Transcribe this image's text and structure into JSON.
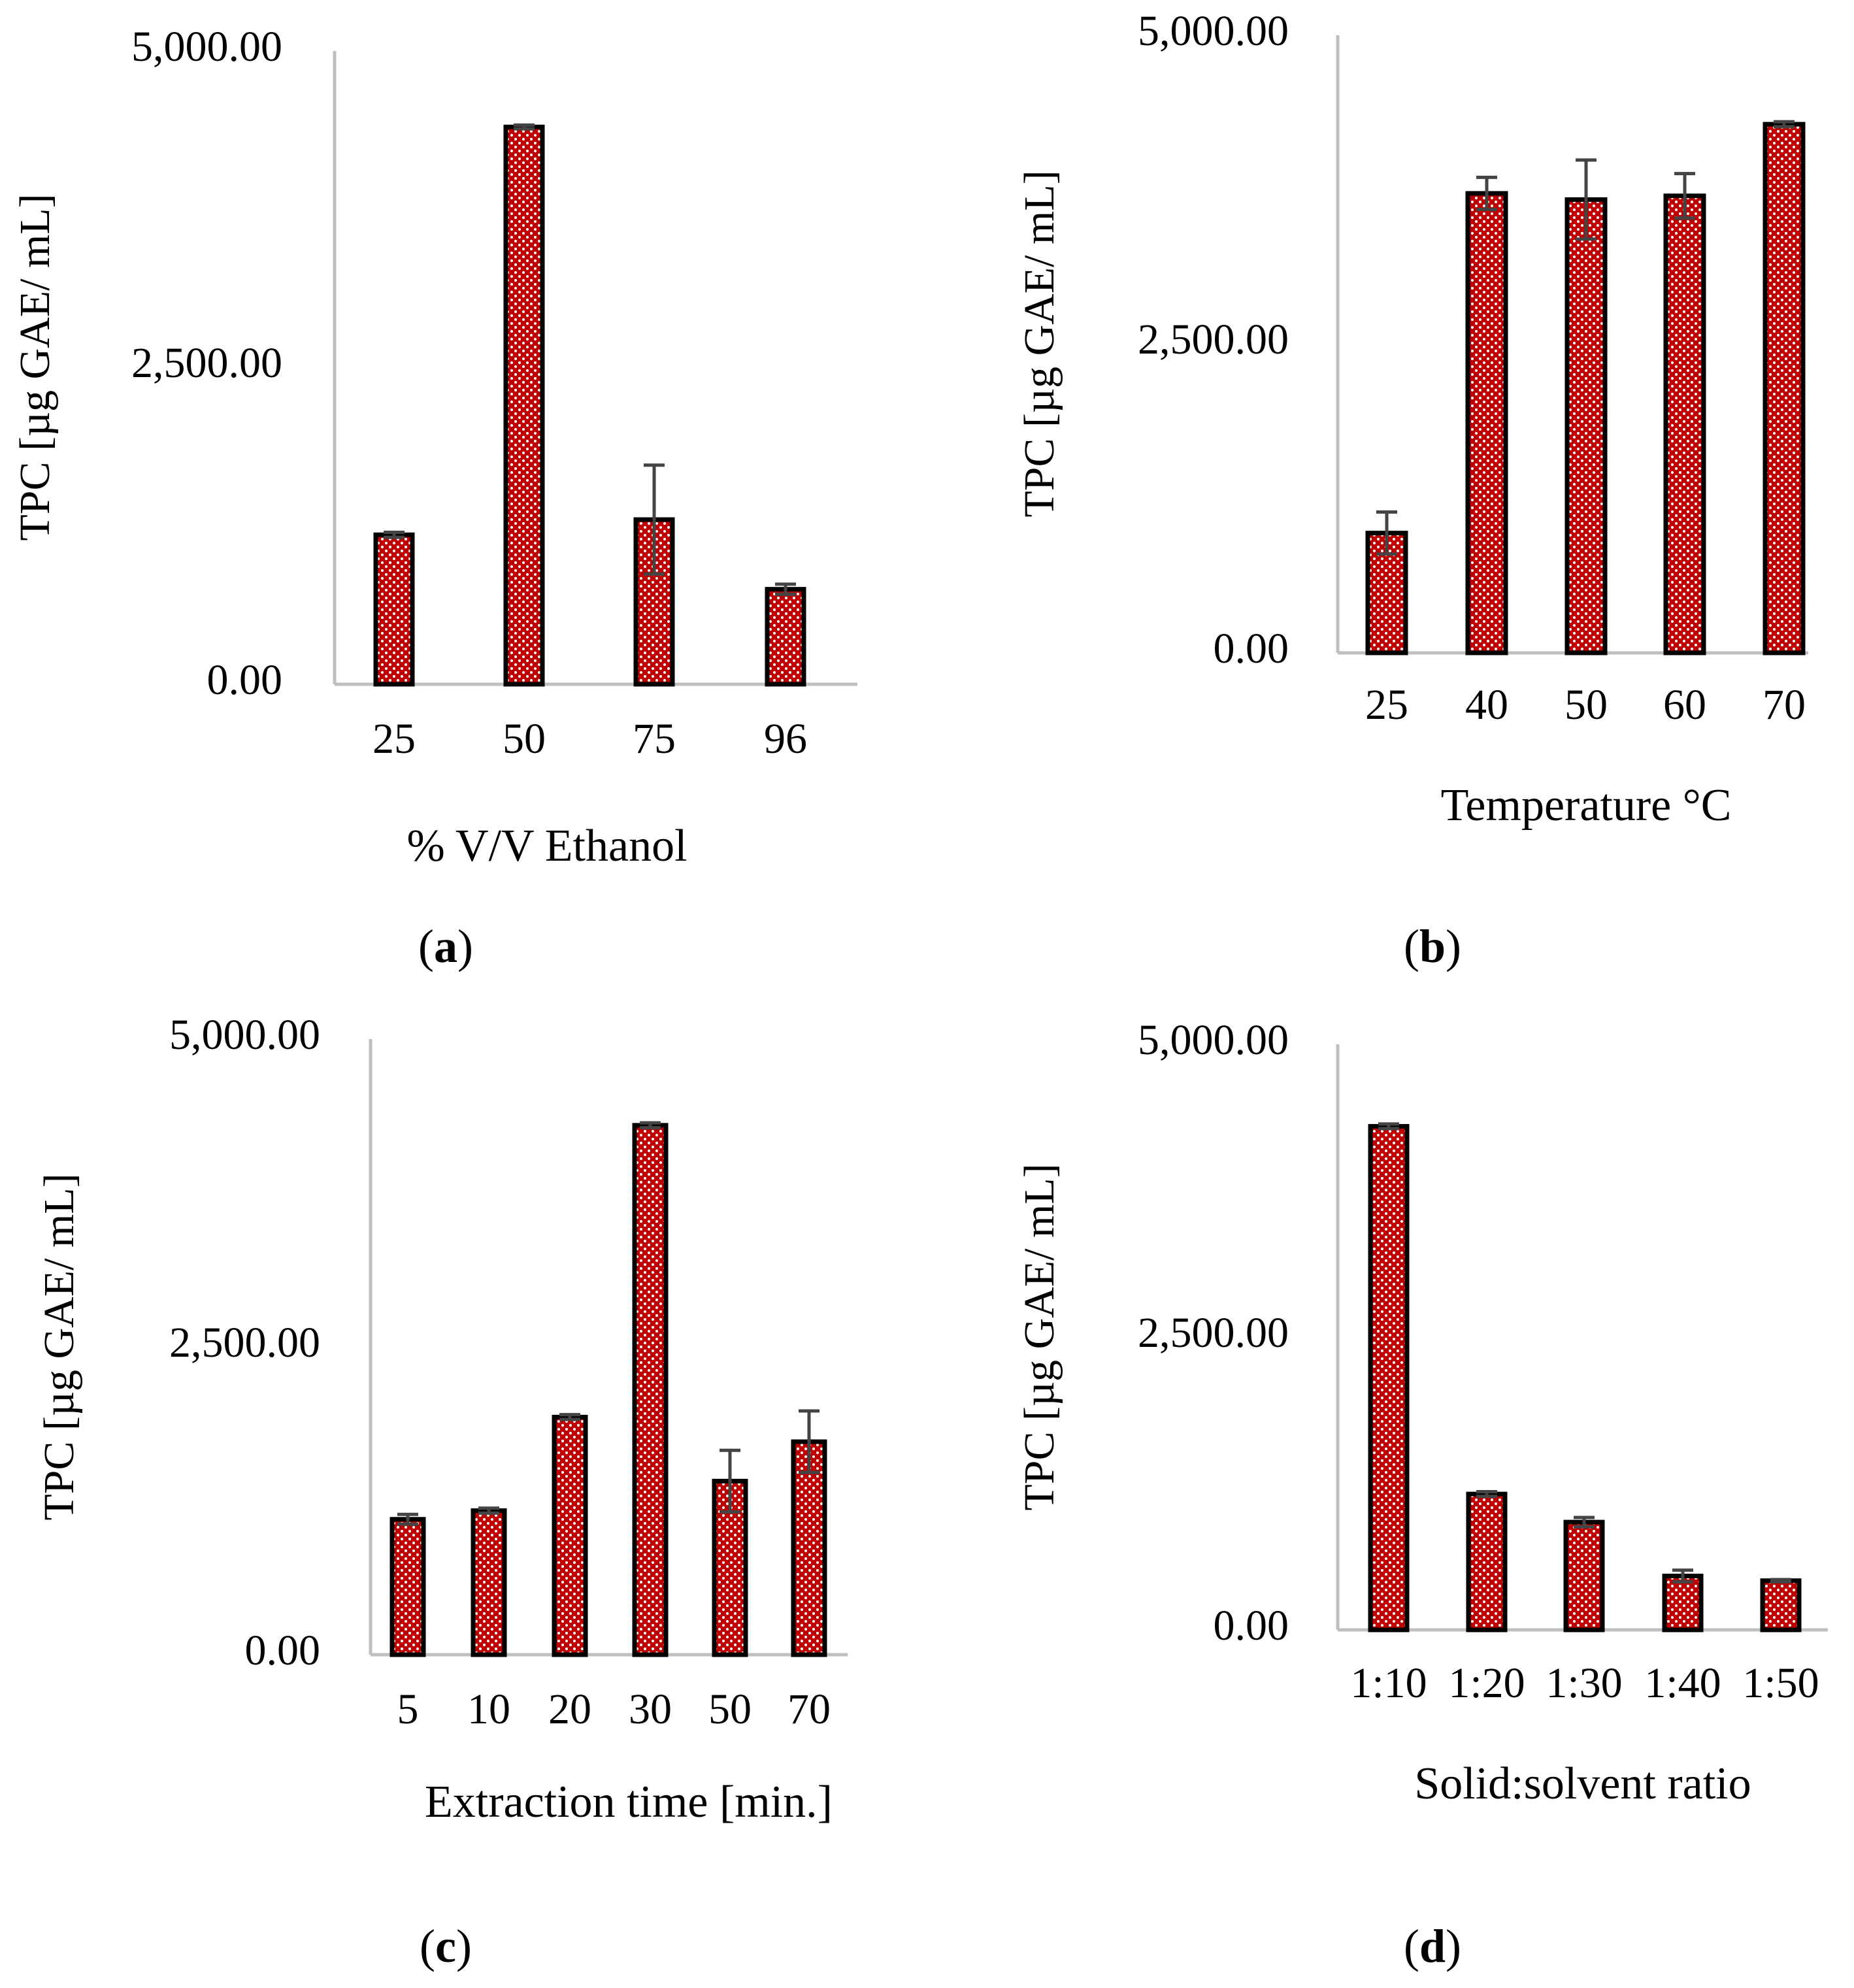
{
  "colors": {
    "bar_fill": "#c00000",
    "bar_dots": "#ffffff",
    "bar_outline": "#000000",
    "axis": "#bfbfbf",
    "error_bar": "#444444"
  },
  "chart_data": [
    {
      "type": "bar",
      "panel_label": "a",
      "title": "",
      "ylabel": "TPC [µg  GAE/ mL]",
      "xlabel": "% V/V Ethanol",
      "ylim": [
        0,
        5000
      ],
      "yticks": [
        "0.00",
        "2,500.00",
        "5,000.00"
      ],
      "ytick_values": [
        0,
        2500,
        5000
      ],
      "categories": [
        "25",
        "50",
        "75",
        "96"
      ],
      "values": [
        1180,
        4400,
        1300,
        750
      ],
      "errors": [
        20,
        15,
        430,
        40
      ]
    },
    {
      "type": "bar",
      "panel_label": "b",
      "title": "",
      "ylabel": "TPC [µg  GAE/ mL]",
      "xlabel": "Temperature °C",
      "ylim": [
        0,
        5000
      ],
      "yticks": [
        "0.00",
        "2,500.00",
        "5,000.00"
      ],
      "ytick_values": [
        0,
        2500,
        5000
      ],
      "categories": [
        "25",
        "40",
        "50",
        "60",
        "70"
      ],
      "values": [
        970,
        3720,
        3670,
        3700,
        4280
      ],
      "errors": [
        170,
        130,
        320,
        180,
        20
      ]
    },
    {
      "type": "bar",
      "panel_label": "c",
      "title": "",
      "ylabel": "TPC [µg  GAE/ mL]",
      "xlabel": "Extraction time [min.]",
      "ylim": [
        0,
        5000
      ],
      "yticks": [
        "0.00",
        "2,500.00",
        "5,000.00"
      ],
      "ytick_values": [
        0,
        2500,
        5000
      ],
      "categories": [
        "5",
        "10",
        "20",
        "30",
        "50",
        "70"
      ],
      "values": [
        1100,
        1170,
        1930,
        4300,
        1410,
        1730
      ],
      "errors": [
        40,
        20,
        20,
        20,
        250,
        250
      ]
    },
    {
      "type": "bar",
      "panel_label": "d",
      "title": "",
      "ylabel": "TPC [µg  GAE/ mL]",
      "xlabel": "Solid:solvent ratio",
      "ylim": [
        0,
        5000
      ],
      "yticks": [
        "0.00",
        "2,500.00",
        "5,000.00"
      ],
      "ytick_values": [
        0,
        2500,
        5000
      ],
      "categories": [
        "1:10",
        "1:20",
        "1:30",
        "1:40",
        "1:50"
      ],
      "values": [
        4300,
        1160,
        920,
        460,
        420
      ],
      "errors": [
        20,
        20,
        40,
        50,
        10
      ]
    }
  ]
}
